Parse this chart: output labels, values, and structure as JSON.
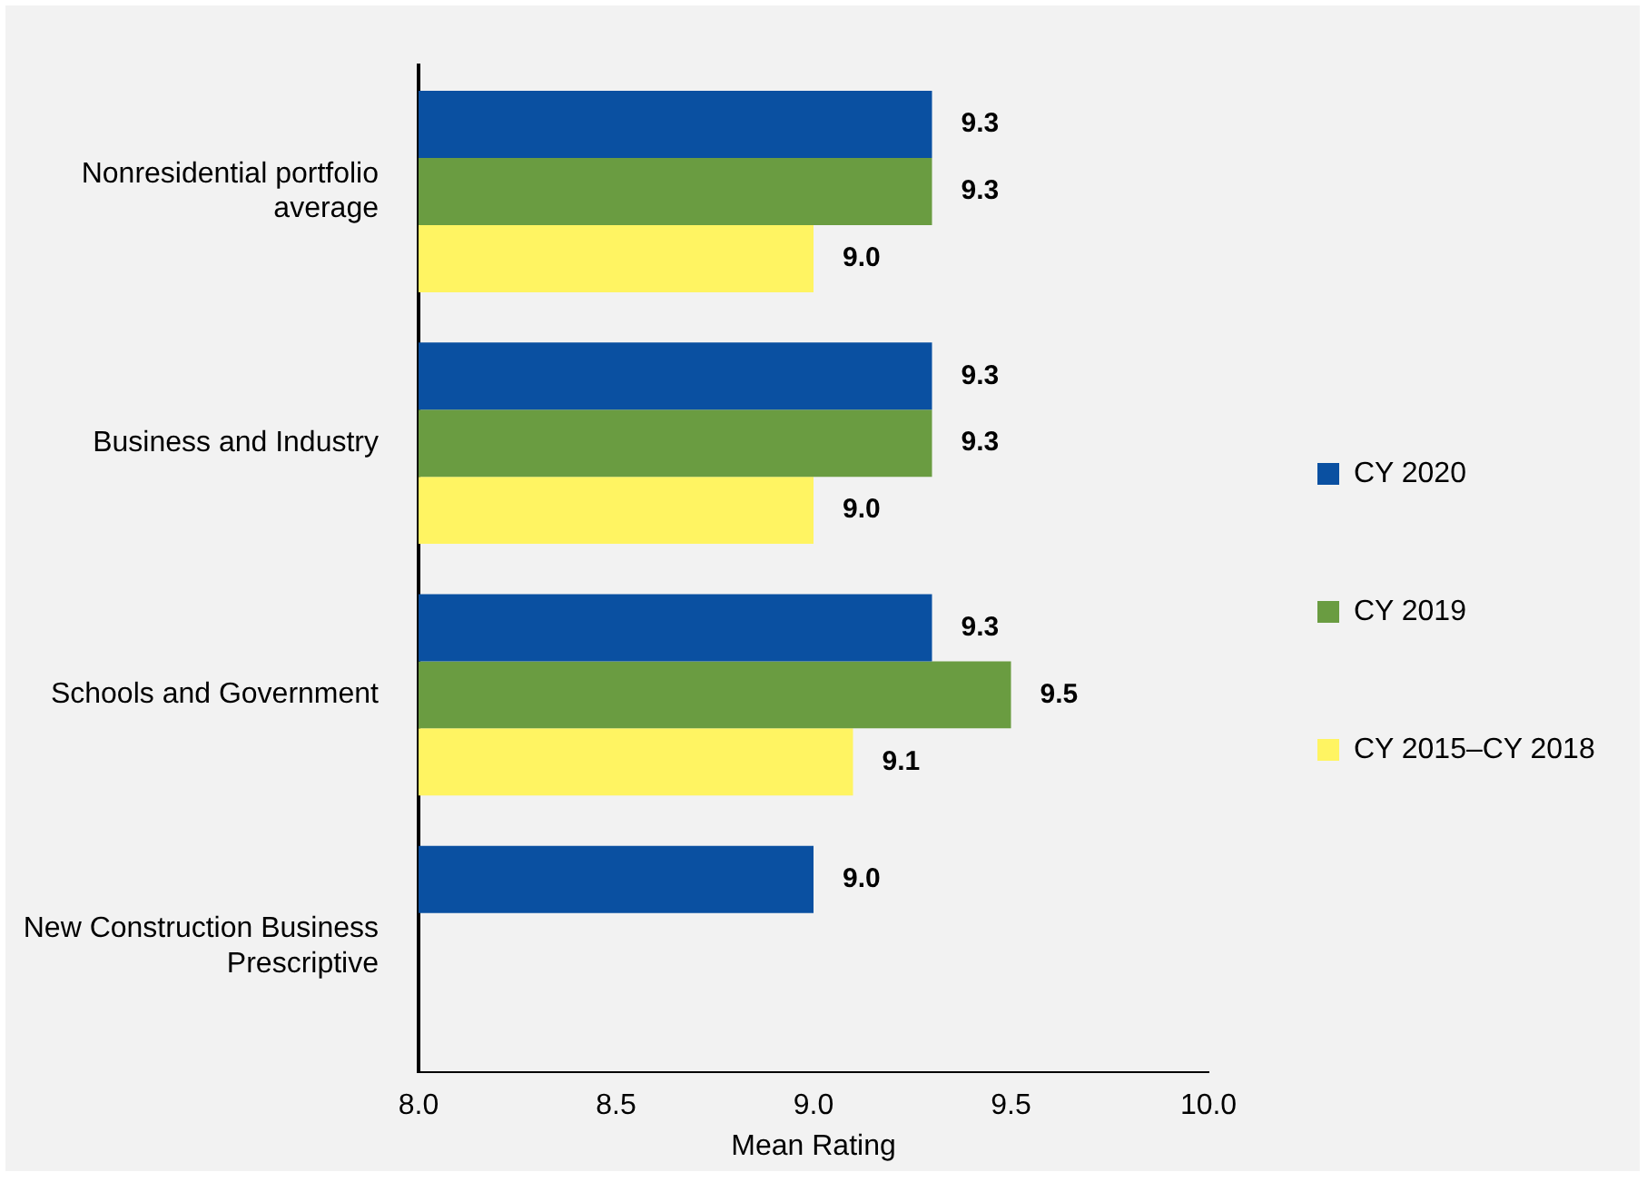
{
  "chart_data": {
    "type": "bar",
    "orientation": "horizontal",
    "xlabel": "Mean Rating",
    "categories": [
      "Nonresidential portfolio average",
      "Business and Industry",
      "Schools and Government",
      "New Construction Business Prescriptive"
    ],
    "series": [
      {
        "name": "CY 2020",
        "color": "#0a50a1",
        "values": [
          9.3,
          9.3,
          9.3,
          9.0
        ],
        "value_labels": [
          "9.3",
          "9.3",
          "9.3",
          "9.0"
        ]
      },
      {
        "name": "CY 2019",
        "color": "#6a9c41",
        "values": [
          9.3,
          9.3,
          9.5,
          null
        ],
        "value_labels": [
          "9.3",
          "9.3",
          "9.5",
          null
        ]
      },
      {
        "name": "CY 2015–CY 2018",
        "color": "#fff462",
        "values": [
          9.0,
          9.0,
          9.1,
          null
        ],
        "value_labels": [
          "9.0",
          "9.0",
          "9.1",
          null
        ]
      }
    ],
    "xlim": [
      8,
      10
    ],
    "xticks": [
      {
        "value": 8,
        "label": "8.0"
      },
      {
        "value": 8.5,
        "label": "8.5"
      },
      {
        "value": 9,
        "label": "9.0"
      },
      {
        "value": 9.5,
        "label": "9.5"
      },
      {
        "value": 10,
        "label": "10.0"
      }
    ],
    "grid": false,
    "legend": "right"
  }
}
